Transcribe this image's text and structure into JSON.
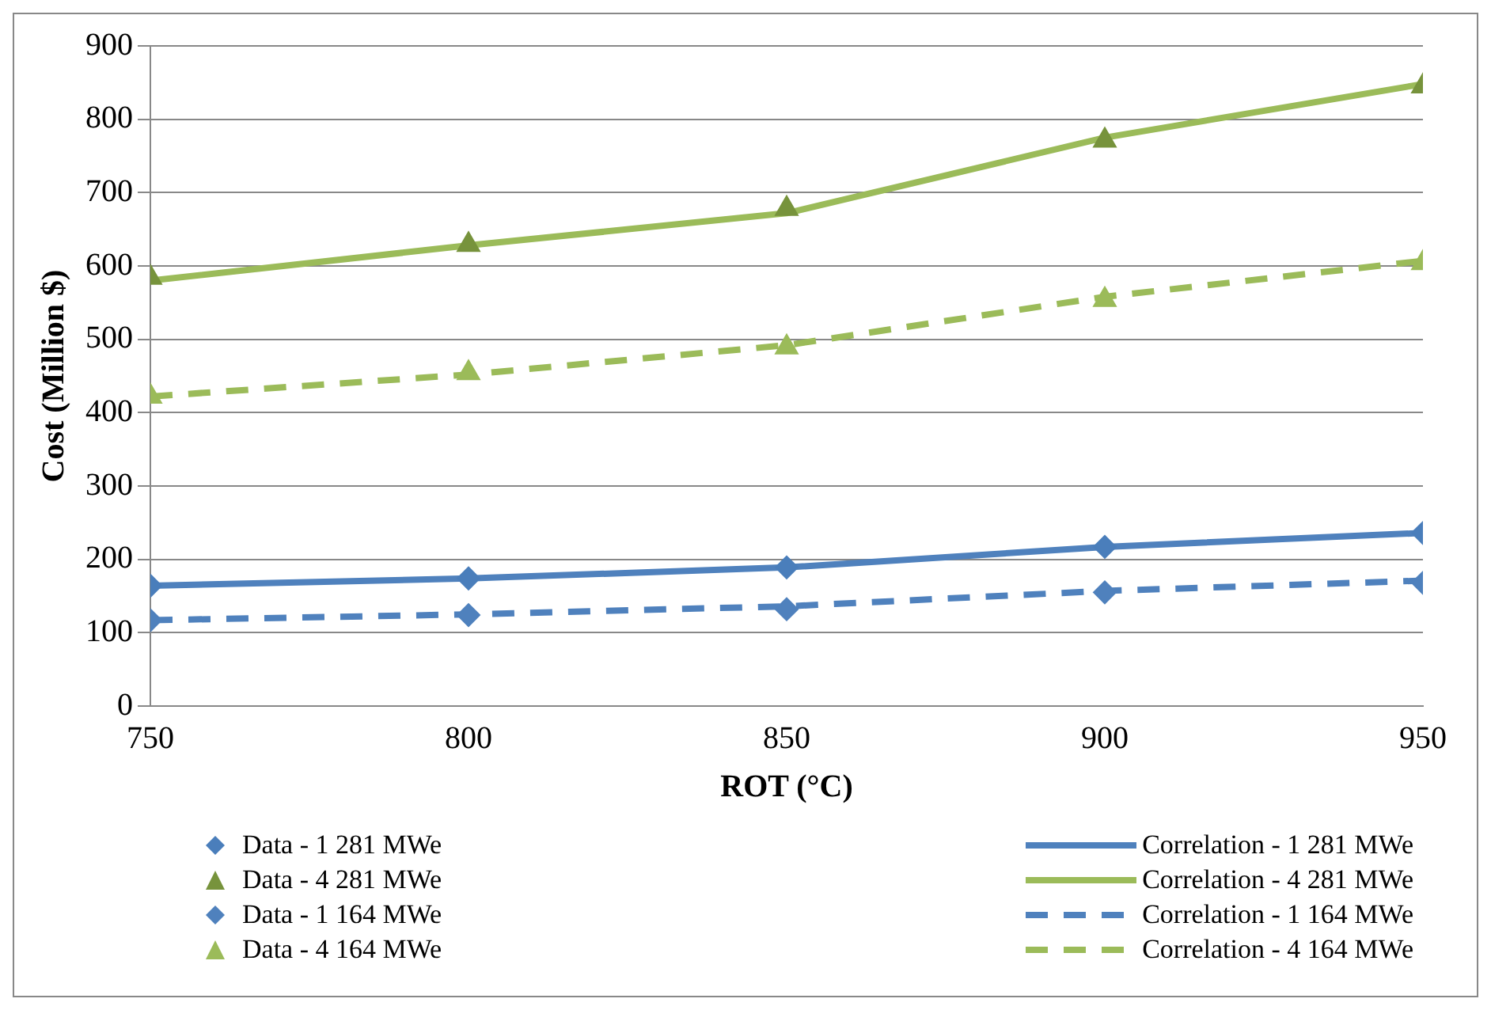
{
  "chart_data": {
    "type": "line",
    "xlabel": "ROT (°C)",
    "ylabel": "Cost (Million $)",
    "x": [
      750,
      800,
      850,
      900,
      950
    ],
    "xlim": [
      750,
      950
    ],
    "xticks": [
      750,
      800,
      850,
      900,
      950
    ],
    "ylim": [
      0,
      900
    ],
    "yticks": [
      0,
      100,
      200,
      300,
      400,
      500,
      600,
      700,
      800,
      900
    ],
    "grid": "y",
    "legend": "bottom",
    "series": [
      {
        "name": "Data - 1 281 MWe",
        "type": "scatter",
        "marker": "diamond",
        "color": "#4a7ebb",
        "values": [
          164,
          174,
          189,
          217,
          236
        ]
      },
      {
        "name": "Data - 4 281 MWe",
        "type": "scatter",
        "marker": "triangle",
        "color": "#77933c",
        "values": [
          584,
          629,
          678,
          771,
          845
        ]
      },
      {
        "name": "Data - 1 164 MWe",
        "type": "scatter",
        "marker": "diamond",
        "color": "#4f81bd",
        "values": [
          117,
          124,
          132,
          155,
          168
        ]
      },
      {
        "name": "Data - 4 164 MWe",
        "type": "scatter",
        "marker": "triangle",
        "color": "#9bbb59",
        "values": [
          422,
          454,
          489,
          554,
          604
        ]
      },
      {
        "name": "Correlation - 1 281 MWe",
        "type": "line",
        "marker": "none",
        "line_style": "solid",
        "color": "#4f81bd",
        "values": [
          164,
          174,
          189,
          217,
          236
        ]
      },
      {
        "name": "Correlation - 4 281 MWe",
        "type": "line",
        "marker": "none",
        "line_style": "solid",
        "color": "#9bbb59",
        "values": [
          580,
          628,
          672,
          775,
          848
        ]
      },
      {
        "name": "Correlation - 1 164 MWe",
        "type": "line",
        "marker": "none",
        "line_style": "dashed",
        "color": "#4f81bd",
        "values": [
          117,
          125,
          136,
          157,
          171
        ]
      },
      {
        "name": "Correlation - 4 164 MWe",
        "type": "line",
        "marker": "none",
        "line_style": "dashed",
        "color": "#9bbb59",
        "values": [
          422,
          452,
          492,
          558,
          607
        ]
      }
    ]
  }
}
